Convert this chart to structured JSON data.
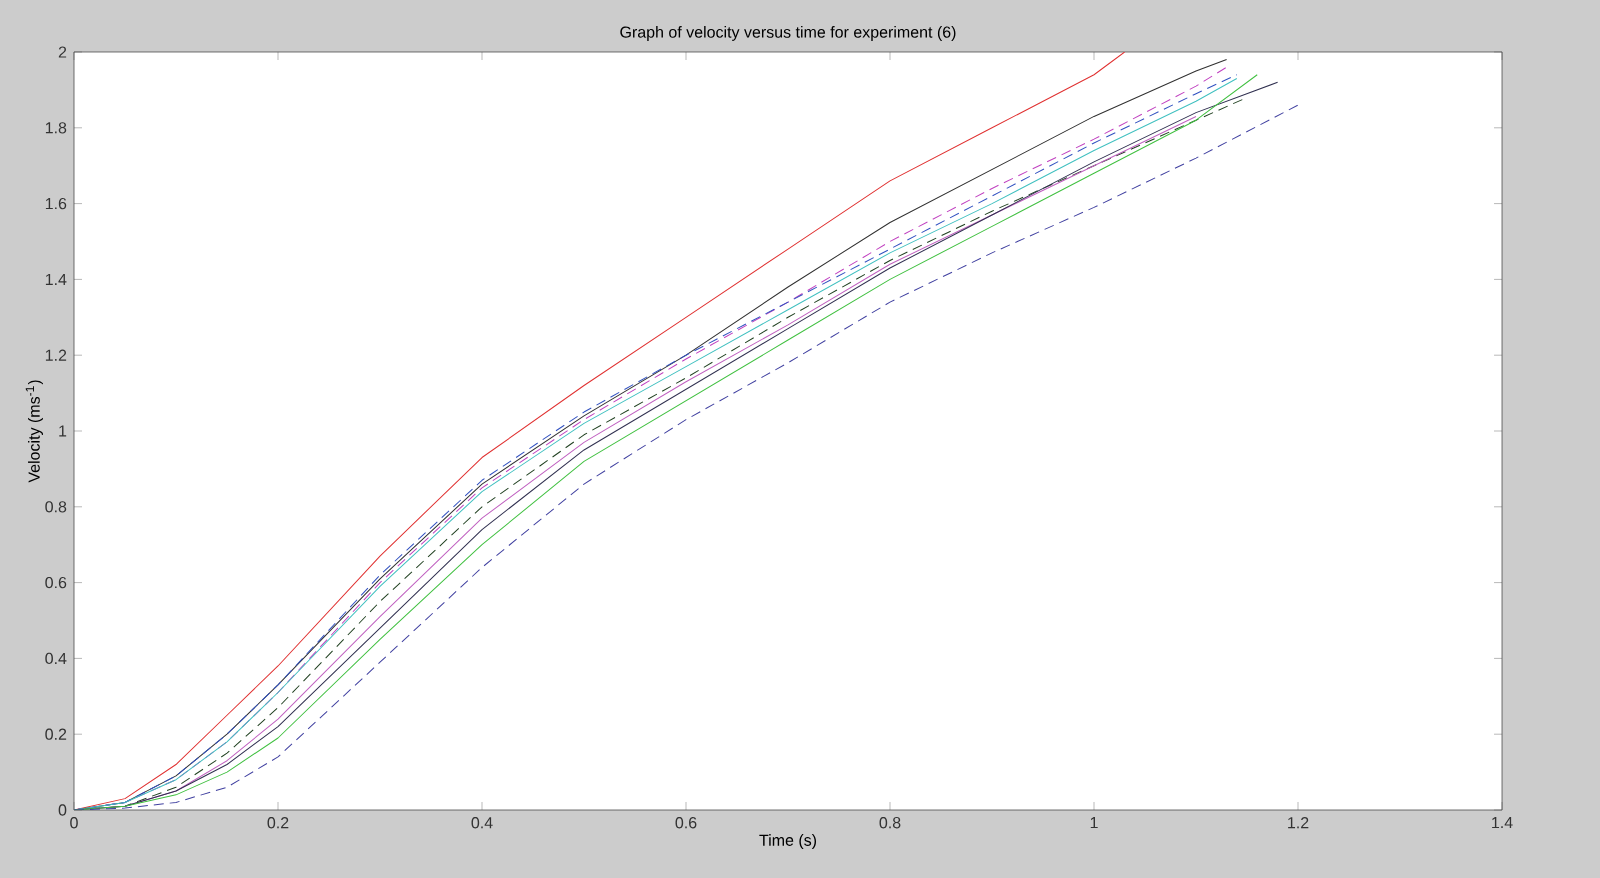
{
  "chart_data": {
    "type": "line",
    "title": "Graph of velocity versus time for experiment (6)",
    "xlabel": "Time (s)",
    "ylabel": "Velocity (ms$^{-1}$)",
    "xlim": [
      0,
      1.4
    ],
    "ylim": [
      0,
      2
    ],
    "xticks": [
      0,
      0.2,
      0.4,
      0.6,
      0.8,
      1,
      1.2,
      1.4
    ],
    "yticks": [
      0,
      0.2,
      0.4,
      0.6,
      0.8,
      1,
      1.2,
      1.4,
      1.6,
      1.8,
      2
    ],
    "grid": false,
    "marker": "none",
    "series": [
      {
        "color": "#e03030",
        "line_style": "solid",
        "x": [
          0,
          0.05,
          0.1,
          0.15,
          0.2,
          0.3,
          0.4,
          0.5,
          0.6,
          0.7,
          0.8,
          0.9,
          1.0,
          1.03
        ],
        "values": [
          0,
          0.03,
          0.12,
          0.25,
          0.38,
          0.67,
          0.93,
          1.12,
          1.3,
          1.48,
          1.66,
          1.8,
          1.94,
          2.0
        ]
      },
      {
        "color": "#303030",
        "line_style": "solid",
        "x": [
          0,
          0.05,
          0.1,
          0.15,
          0.2,
          0.3,
          0.4,
          0.5,
          0.6,
          0.7,
          0.8,
          0.9,
          1.0,
          1.1,
          1.13
        ],
        "values": [
          0,
          0.02,
          0.09,
          0.2,
          0.33,
          0.61,
          0.86,
          1.04,
          1.2,
          1.38,
          1.55,
          1.69,
          1.83,
          1.95,
          1.98
        ]
      },
      {
        "color": "#c040c0",
        "line_style": "dashed",
        "x": [
          0,
          0.05,
          0.1,
          0.15,
          0.2,
          0.3,
          0.4,
          0.5,
          0.6,
          0.7,
          0.8,
          0.9,
          1.0,
          1.1,
          1.13
        ],
        "values": [
          0,
          0.02,
          0.08,
          0.18,
          0.31,
          0.6,
          0.85,
          1.03,
          1.19,
          1.34,
          1.5,
          1.64,
          1.77,
          1.91,
          1.96
        ]
      },
      {
        "color": "#3050c0",
        "line_style": "dashed",
        "x": [
          0,
          0.05,
          0.1,
          0.15,
          0.2,
          0.3,
          0.4,
          0.5,
          0.6,
          0.7,
          0.8,
          0.9,
          1.0,
          1.1,
          1.14
        ],
        "values": [
          0,
          0.02,
          0.09,
          0.2,
          0.33,
          0.62,
          0.87,
          1.05,
          1.2,
          1.34,
          1.48,
          1.62,
          1.76,
          1.89,
          1.94
        ]
      },
      {
        "color": "#40c0c0",
        "line_style": "solid",
        "x": [
          0,
          0.05,
          0.1,
          0.15,
          0.2,
          0.3,
          0.4,
          0.5,
          0.6,
          0.7,
          0.8,
          0.9,
          1.0,
          1.1,
          1.14
        ],
        "values": [
          0,
          0.02,
          0.08,
          0.18,
          0.31,
          0.59,
          0.84,
          1.02,
          1.17,
          1.32,
          1.47,
          1.6,
          1.74,
          1.87,
          1.93
        ]
      },
      {
        "color": "#204020",
        "line_style": "dashed",
        "x": [
          0,
          0.05,
          0.1,
          0.15,
          0.2,
          0.3,
          0.4,
          0.5,
          0.6,
          0.7,
          0.8,
          0.9,
          1.0,
          1.1,
          1.15
        ],
        "values": [
          0,
          0.01,
          0.06,
          0.15,
          0.27,
          0.55,
          0.8,
          0.99,
          1.14,
          1.3,
          1.45,
          1.58,
          1.7,
          1.82,
          1.88
        ]
      },
      {
        "color": "#c060c0",
        "line_style": "solid",
        "x": [
          0,
          0.05,
          0.1,
          0.15,
          0.2,
          0.3,
          0.4,
          0.5,
          0.6,
          0.7,
          0.8,
          0.9,
          1.0,
          1.1
        ],
        "values": [
          0,
          0.01,
          0.05,
          0.13,
          0.24,
          0.51,
          0.77,
          0.97,
          1.13,
          1.28,
          1.44,
          1.57,
          1.7,
          1.83
        ]
      },
      {
        "color": "#303050",
        "line_style": "solid",
        "x": [
          0,
          0.05,
          0.1,
          0.15,
          0.2,
          0.3,
          0.4,
          0.5,
          0.6,
          0.7,
          0.8,
          0.9,
          1.0,
          1.1,
          1.18
        ],
        "values": [
          0,
          0.01,
          0.05,
          0.12,
          0.22,
          0.48,
          0.74,
          0.95,
          1.11,
          1.27,
          1.43,
          1.57,
          1.71,
          1.84,
          1.92
        ]
      },
      {
        "color": "#40c040",
        "line_style": "solid",
        "x": [
          0,
          0.05,
          0.1,
          0.15,
          0.2,
          0.3,
          0.4,
          0.5,
          0.6,
          0.7,
          0.8,
          0.9,
          1.0,
          1.1,
          1.16
        ],
        "values": [
          0,
          0.01,
          0.04,
          0.1,
          0.19,
          0.45,
          0.7,
          0.92,
          1.08,
          1.24,
          1.4,
          1.54,
          1.68,
          1.82,
          1.94
        ]
      },
      {
        "color": "#4040a0",
        "line_style": "dashed",
        "x": [
          0,
          0.05,
          0.1,
          0.15,
          0.2,
          0.3,
          0.4,
          0.5,
          0.6,
          0.7,
          0.8,
          0.9,
          1.0,
          1.1,
          1.2
        ],
        "values": [
          0,
          0.005,
          0.02,
          0.06,
          0.14,
          0.39,
          0.64,
          0.86,
          1.03,
          1.18,
          1.34,
          1.47,
          1.59,
          1.72,
          1.86
        ]
      }
    ]
  }
}
